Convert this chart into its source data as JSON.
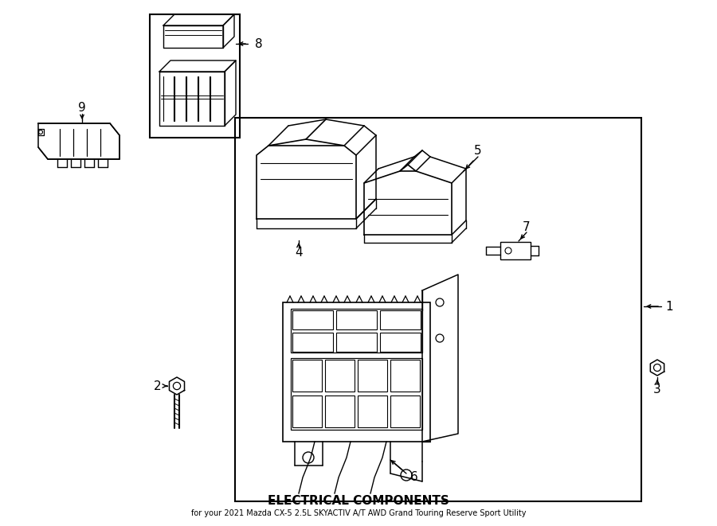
{
  "background_color": "#ffffff",
  "line_color": "#000000",
  "figure_width": 9.0,
  "figure_height": 6.61,
  "dpi": 100,
  "title": "ELECTRICAL COMPONENTS",
  "subtitle": "for your 2021 Mazda CX-5 2.5L SKYACTIV A/T AWD Grand Touring Reserve Sport Utility"
}
